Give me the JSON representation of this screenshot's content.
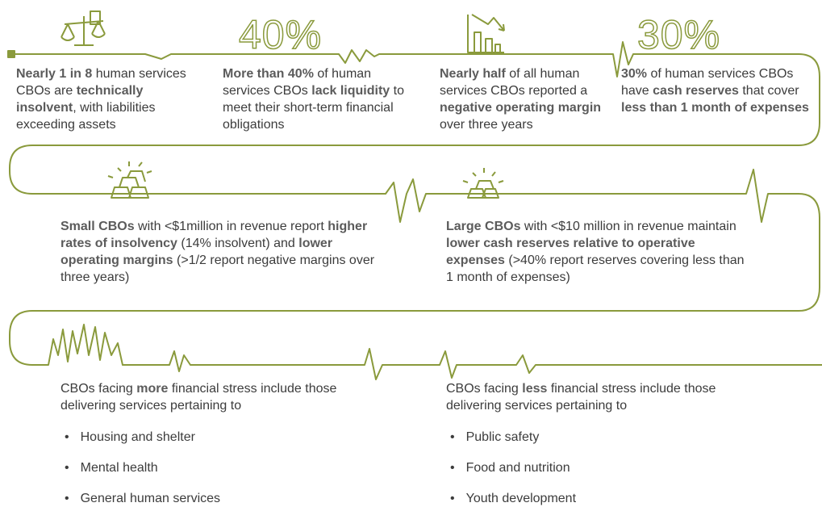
{
  "facts": [
    {
      "runs": [
        {
          "text": "Nearly 1 in 8",
          "strong": true
        },
        {
          "text": " human services CBOs are "
        },
        {
          "text": "technically insolvent",
          "strong": true
        },
        {
          "text": ", with liabilities exceeding assets"
        }
      ]
    },
    {
      "figure": "40%",
      "runs": [
        {
          "text": "More than 40%",
          "strong": true
        },
        {
          "text": " of human services CBOs "
        },
        {
          "text": "lack liquidity",
          "strong": true
        },
        {
          "text": " to meet their short-term financial obligations"
        }
      ]
    },
    {
      "runs": [
        {
          "text": "Nearly half",
          "strong": true
        },
        {
          "text": " of all human services CBOs reported a "
        },
        {
          "text": "negative operating margin",
          "strong": true
        },
        {
          "text": " over three years"
        }
      ]
    },
    {
      "figure": "30%",
      "runs": [
        {
          "text": "30%",
          "strong": true
        },
        {
          "text": " of human services CBOs have "
        },
        {
          "text": "cash reserves",
          "strong": true
        },
        {
          "text": " that cover "
        },
        {
          "text": "less than 1 month of expenses",
          "strong": true
        }
      ]
    }
  ],
  "sizes": [
    {
      "runs": [
        {
          "text": "Small CBOs",
          "strong": true
        },
        {
          "text": " with <$1million in revenue report "
        },
        {
          "text": "higher rates of insolvency",
          "strong": true
        },
        {
          "text": " (14% insolvent) and "
        },
        {
          "text": "lower operating margins",
          "strong": true
        },
        {
          "text": " (>1/2 report negative margins over three years)"
        }
      ]
    },
    {
      "runs": [
        {
          "text": "Large CBOs",
          "strong": true
        },
        {
          "text": " with <$10 million in revenue maintain "
        },
        {
          "text": "lower cash reserves relative to operative expenses",
          "strong": true
        },
        {
          "text": " (>40% report reserves covering less than 1 month of expenses)"
        }
      ]
    }
  ],
  "groups": [
    {
      "intro": {
        "runs": [
          {
            "text": "CBOs facing "
          },
          {
            "text": "more",
            "strong": true
          },
          {
            "text": " financial stress include those delivering services pertaining to"
          }
        ]
      },
      "items": [
        "Housing and shelter",
        "Mental health",
        "General human services"
      ]
    },
    {
      "intro": {
        "runs": [
          {
            "text": "CBOs facing "
          },
          {
            "text": "less",
            "strong": true
          },
          {
            "text": " financial stress include those delivering services pertaining to"
          }
        ]
      },
      "items": [
        "Public safety",
        "Food and nutrition",
        "Youth development"
      ]
    }
  ]
}
